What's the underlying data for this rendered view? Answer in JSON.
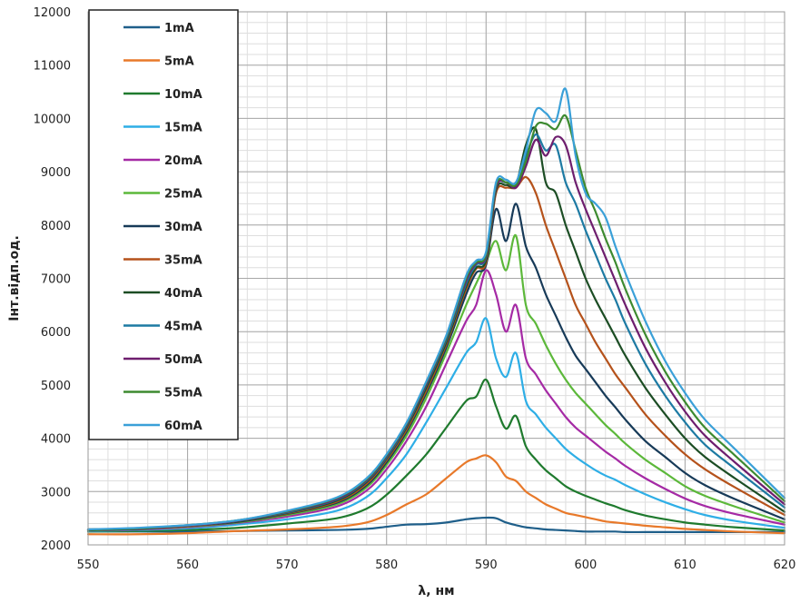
{
  "chart_data": {
    "type": "line",
    "title": "",
    "xlabel": "λ, нм",
    "ylabel": "Інт.відп.од.",
    "xlim": [
      550,
      620
    ],
    "ylim": [
      2000,
      12000
    ],
    "x_ticks": [
      550,
      560,
      570,
      580,
      590,
      600,
      610,
      620
    ],
    "y_ticks": [
      2000,
      3000,
      4000,
      5000,
      6000,
      7000,
      8000,
      9000,
      10000,
      11000,
      12000
    ],
    "x_minor_step": 2,
    "y_minor_step": 200,
    "grid": true,
    "legend_position": "top-left",
    "x": [
      550,
      555,
      560,
      565,
      570,
      575,
      578,
      580,
      582,
      584,
      586,
      588,
      589,
      590,
      591,
      592,
      593,
      594,
      595,
      596,
      597,
      598,
      599,
      600,
      601,
      602,
      603,
      604,
      606,
      608,
      610,
      612,
      615,
      620
    ],
    "series": [
      {
        "name": "1mA",
        "color": "#1f5f8a",
        "values": [
          2250,
          2250,
          2250,
          2260,
          2270,
          2280,
          2300,
          2340,
          2380,
          2390,
          2420,
          2480,
          2500,
          2510,
          2500,
          2420,
          2370,
          2330,
          2310,
          2290,
          2280,
          2270,
          2260,
          2250,
          2250,
          2250,
          2250,
          2240,
          2240,
          2240,
          2240,
          2240,
          2240,
          2240
        ]
      },
      {
        "name": "5mA",
        "color": "#e8792a",
        "values": [
          2200,
          2200,
          2220,
          2260,
          2290,
          2340,
          2420,
          2560,
          2760,
          2950,
          3250,
          3550,
          3620,
          3680,
          3550,
          3280,
          3200,
          3000,
          2880,
          2760,
          2680,
          2600,
          2560,
          2520,
          2480,
          2440,
          2420,
          2400,
          2360,
          2330,
          2300,
          2280,
          2250,
          2220
        ]
      },
      {
        "name": "10mA",
        "color": "#1f7a2e",
        "values": [
          2250,
          2260,
          2280,
          2320,
          2400,
          2500,
          2680,
          2940,
          3300,
          3700,
          4200,
          4700,
          4780,
          5100,
          4600,
          4180,
          4420,
          3850,
          3600,
          3400,
          3250,
          3100,
          3000,
          2920,
          2850,
          2780,
          2720,
          2650,
          2550,
          2480,
          2420,
          2380,
          2330,
          2270
        ]
      },
      {
        "name": "15mA",
        "color": "#2eaee6",
        "values": [
          2260,
          2280,
          2310,
          2380,
          2480,
          2640,
          2900,
          3250,
          3700,
          4300,
          4950,
          5600,
          5800,
          6250,
          5500,
          5150,
          5600,
          4700,
          4450,
          4200,
          4000,
          3800,
          3650,
          3520,
          3400,
          3300,
          3220,
          3120,
          2950,
          2800,
          2670,
          2560,
          2450,
          2320
        ]
      },
      {
        "name": "20mA",
        "color": "#a52aa5",
        "values": [
          2270,
          2290,
          2330,
          2410,
          2530,
          2720,
          3020,
          3420,
          3950,
          4600,
          5400,
          6200,
          6500,
          7150,
          6700,
          6000,
          6500,
          5500,
          5200,
          4900,
          4650,
          4400,
          4200,
          4050,
          3900,
          3750,
          3620,
          3480,
          3250,
          3050,
          2870,
          2730,
          2580,
          2380
        ]
      },
      {
        "name": "25mA",
        "color": "#5cb83a",
        "values": [
          2270,
          2300,
          2340,
          2420,
          2560,
          2760,
          3080,
          3500,
          4050,
          4760,
          5600,
          6500,
          6900,
          7300,
          7700,
          7150,
          7800,
          6500,
          6150,
          5750,
          5400,
          5100,
          4850,
          4650,
          4450,
          4250,
          4080,
          3900,
          3600,
          3350,
          3100,
          2920,
          2720,
          2420
        ]
      },
      {
        "name": "30mA",
        "color": "#173a58",
        "values": [
          2280,
          2300,
          2350,
          2430,
          2580,
          2790,
          3120,
          3550,
          4120,
          4850,
          5700,
          6700,
          7100,
          7250,
          8300,
          7700,
          8400,
          7600,
          7200,
          6700,
          6300,
          5900,
          5550,
          5300,
          5050,
          4800,
          4580,
          4350,
          3950,
          3650,
          3350,
          3120,
          2860,
          2480
        ]
      },
      {
        "name": "35mA",
        "color": "#b5521b",
        "values": [
          2280,
          2300,
          2350,
          2440,
          2590,
          2810,
          3150,
          3590,
          4160,
          4900,
          5760,
          6800,
          7180,
          7300,
          8600,
          8700,
          8700,
          8900,
          8600,
          8000,
          7500,
          7000,
          6500,
          6150,
          5800,
          5500,
          5200,
          4950,
          4450,
          4050,
          3700,
          3420,
          3080,
          2560
        ]
      },
      {
        "name": "40mA",
        "color": "#1c4d24",
        "values": [
          2280,
          2300,
          2360,
          2440,
          2600,
          2830,
          3180,
          3620,
          4200,
          4950,
          5800,
          6850,
          7200,
          7350,
          8650,
          8750,
          8750,
          9500,
          9800,
          8800,
          8600,
          8000,
          7500,
          7000,
          6600,
          6250,
          5900,
          5550,
          4950,
          4450,
          4000,
          3650,
          3250,
          2620
        ]
      },
      {
        "name": "45mA",
        "color": "#1d7aa3",
        "values": [
          2290,
          2310,
          2360,
          2450,
          2610,
          2850,
          3200,
          3640,
          4230,
          5000,
          5850,
          6900,
          7250,
          7400,
          8700,
          8800,
          8800,
          9300,
          9700,
          9400,
          9500,
          8800,
          8400,
          7900,
          7450,
          7000,
          6600,
          6150,
          5400,
          4800,
          4300,
          3880,
          3430,
          2700
        ]
      },
      {
        "name": "50mA",
        "color": "#6e1e6e",
        "values": [
          2290,
          2310,
          2360,
          2450,
          2620,
          2860,
          3210,
          3660,
          4250,
          5020,
          5880,
          6950,
          7280,
          7420,
          8700,
          8800,
          8700,
          9100,
          9600,
          9300,
          9650,
          9500,
          8800,
          8300,
          7850,
          7400,
          6950,
          6500,
          5700,
          5050,
          4500,
          4050,
          3550,
          2760
        ]
      },
      {
        "name": "55mA",
        "color": "#3d8a30",
        "values": [
          2290,
          2310,
          2370,
          2460,
          2630,
          2880,
          3230,
          3680,
          4270,
          5050,
          5900,
          7000,
          7300,
          7450,
          8750,
          8800,
          8750,
          9200,
          9850,
          9900,
          9800,
          10050,
          9400,
          8700,
          8250,
          7750,
          7300,
          6800,
          5950,
          5250,
          4680,
          4200,
          3680,
          2820
        ]
      },
      {
        "name": "60mA",
        "color": "#3aa0d8",
        "values": [
          2290,
          2320,
          2370,
          2460,
          2640,
          2890,
          3250,
          3700,
          4290,
          5070,
          5930,
          7050,
          7330,
          7500,
          8800,
          8850,
          8800,
          9400,
          10150,
          10100,
          9950,
          10550,
          9300,
          8600,
          8400,
          8150,
          7600,
          7100,
          6200,
          5450,
          4850,
          4350,
          3800,
          2880
        ]
      }
    ]
  }
}
